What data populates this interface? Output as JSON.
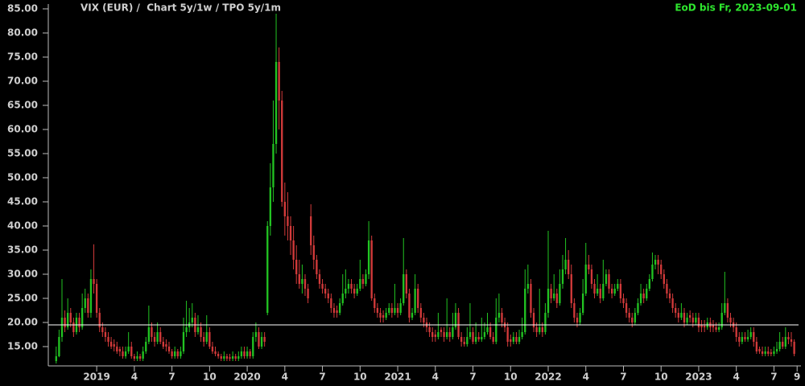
{
  "chart_data": {
    "type": "candlestick",
    "title": "VIX (EUR) /  Chart 5y/1w / TPO 5y/1m",
    "subtitle": "EoD bis Fr, 2023-09-01",
    "up_color": "#22c322",
    "down_color": "#d23a3a",
    "reference_color": "#ffffff",
    "background": "#000000",
    "reference_line": 19.5,
    "ylim": [
      11,
      85.5
    ],
    "yticks": [
      {
        "value": 15,
        "label": "15.00"
      },
      {
        "value": 20,
        "label": "20.00"
      },
      {
        "value": 25,
        "label": "25.00"
      },
      {
        "value": 30,
        "label": "30.00"
      },
      {
        "value": 35,
        "label": "35.00"
      },
      {
        "value": 40,
        "label": "40.00"
      },
      {
        "value": 45,
        "label": "45.00"
      },
      {
        "value": 50,
        "label": "50.00"
      },
      {
        "value": 55,
        "label": "55.00"
      },
      {
        "value": 60,
        "label": "60.00"
      },
      {
        "value": 65,
        "label": "65.00"
      },
      {
        "value": 70,
        "label": "70.00"
      },
      {
        "value": 75,
        "label": "75.00"
      },
      {
        "value": 80,
        "label": "80.00"
      },
      {
        "value": 85,
        "label": "85.00"
      }
    ],
    "xlim": [
      -0.5,
      256.5
    ],
    "xticks": [
      {
        "value": 14,
        "label": "2019"
      },
      {
        "value": 27,
        "label": "4"
      },
      {
        "value": 40,
        "label": "7"
      },
      {
        "value": 53,
        "label": "10"
      },
      {
        "value": 66,
        "label": "2020"
      },
      {
        "value": 79,
        "label": "4"
      },
      {
        "value": 92,
        "label": "7"
      },
      {
        "value": 105,
        "label": "10"
      },
      {
        "value": 118,
        "label": "2021"
      },
      {
        "value": 131,
        "label": "4"
      },
      {
        "value": 144,
        "label": "7"
      },
      {
        "value": 157,
        "label": "10"
      },
      {
        "value": 170,
        "label": "2022"
      },
      {
        "value": 183,
        "label": "4"
      },
      {
        "value": 196,
        "label": "7"
      },
      {
        "value": 209,
        "label": "10"
      },
      {
        "value": 222,
        "label": "2023"
      },
      {
        "value": 235,
        "label": "4"
      },
      {
        "value": 248,
        "label": "7"
      },
      {
        "value": 256,
        "label": "9"
      }
    ],
    "ohlc": [
      [
        12,
        15,
        11.5,
        13
      ],
      [
        13,
        18.5,
        12.8,
        17
      ],
      [
        17,
        29,
        16,
        21
      ],
      [
        21,
        22.5,
        18,
        19
      ],
      [
        19,
        25,
        18.5,
        22
      ],
      [
        22,
        23,
        19,
        20
      ],
      [
        20,
        21,
        17,
        18
      ],
      [
        18,
        22,
        17.5,
        21
      ],
      [
        21,
        22,
        18,
        19
      ],
      [
        19,
        26,
        18.5,
        23
      ],
      [
        23,
        27,
        22,
        25
      ],
      [
        25,
        26,
        21,
        22
      ],
      [
        22,
        31,
        21,
        29
      ],
      [
        29,
        36.2,
        26,
        28
      ],
      [
        28,
        29,
        21,
        22
      ],
      [
        22,
        23,
        18,
        19
      ],
      [
        19,
        20,
        17,
        18
      ],
      [
        18,
        19,
        16,
        17
      ],
      [
        17,
        18,
        15,
        16
      ],
      [
        16,
        17,
        14.5,
        15
      ],
      [
        15.5,
        16.5,
        14,
        15
      ],
      [
        15,
        16,
        13.5,
        14
      ],
      [
        14.5,
        15,
        13,
        14
      ],
      [
        14,
        15,
        12.5,
        13
      ],
      [
        13,
        15,
        12.5,
        14
      ],
      [
        14,
        18,
        13.5,
        15
      ],
      [
        15,
        16,
        12.5,
        13
      ],
      [
        13,
        13.5,
        12,
        12.5
      ],
      [
        12.5,
        14,
        12,
        13
      ],
      [
        13,
        13.5,
        12,
        12.5
      ],
      [
        12.5,
        15,
        12,
        14
      ],
      [
        14,
        17,
        13.5,
        16
      ],
      [
        16,
        23.5,
        15.5,
        19
      ],
      [
        19,
        20,
        16,
        17
      ],
      [
        17,
        18,
        15,
        16
      ],
      [
        16,
        20,
        15.5,
        18
      ],
      [
        18,
        19,
        15.5,
        16
      ],
      [
        16,
        17,
        14.5,
        15
      ],
      [
        15.5,
        16.5,
        14,
        15
      ],
      [
        15,
        16,
        13.5,
        14
      ],
      [
        14,
        14.5,
        12.5,
        13
      ],
      [
        13,
        15,
        12.5,
        14
      ],
      [
        14,
        14.5,
        12.5,
        13
      ],
      [
        13,
        15,
        12.5,
        14
      ],
      [
        14,
        21,
        13.5,
        18
      ],
      [
        18,
        24.5,
        17,
        19
      ],
      [
        19,
        23,
        18,
        20
      ],
      [
        20,
        24,
        19,
        21
      ],
      [
        21,
        22,
        17,
        18
      ],
      [
        18,
        21.5,
        17.5,
        19
      ],
      [
        19,
        20,
        16,
        17
      ],
      [
        17,
        18,
        15,
        16
      ],
      [
        16,
        21.5,
        15.5,
        18
      ],
      [
        18,
        19,
        14.5,
        15
      ],
      [
        15,
        16,
        13.5,
        14
      ],
      [
        14,
        15,
        13,
        13.5
      ],
      [
        13.5,
        14,
        12.5,
        13
      ],
      [
        13,
        13.5,
        12,
        12.5
      ],
      [
        12.5,
        14,
        12,
        13
      ],
      [
        13,
        13.5,
        12,
        12.5
      ],
      [
        12.8,
        13.5,
        12,
        12.5
      ],
      [
        12.5,
        14,
        12,
        13
      ],
      [
        13,
        13.5,
        12,
        12.5
      ],
      [
        12.5,
        14,
        12,
        13
      ],
      [
        13,
        15,
        12.5,
        14
      ],
      [
        14,
        15,
        12.5,
        13
      ],
      [
        13,
        15,
        12.5,
        14
      ],
      [
        14,
        14.5,
        12.5,
        13
      ],
      [
        13,
        18,
        12.5,
        17
      ],
      [
        17,
        20,
        16,
        18
      ],
      [
        18,
        19,
        14.5,
        15
      ],
      [
        15,
        18,
        14.5,
        17
      ],
      [
        17,
        18,
        15,
        16
      ],
      [
        22,
        41,
        21.5,
        40
      ],
      [
        40,
        53,
        38,
        48
      ],
      [
        48,
        66,
        45,
        57
      ],
      [
        57,
        84,
        55,
        74
      ],
      [
        74,
        77,
        60,
        66
      ],
      [
        66,
        68,
        44,
        45
      ],
      [
        45,
        49,
        38,
        42
      ],
      [
        42,
        47,
        37,
        40
      ],
      [
        40,
        42,
        34,
        37
      ],
      [
        37,
        40,
        31,
        33
      ],
      [
        33,
        36,
        28,
        30
      ],
      [
        30,
        33,
        27,
        28
      ],
      [
        28,
        32,
        26,
        29
      ],
      [
        29,
        30,
        25.5,
        27
      ],
      [
        27,
        28,
        24,
        25
      ],
      [
        42,
        44.5,
        34,
        36
      ],
      [
        36,
        38,
        31,
        33
      ],
      [
        33,
        34,
        29,
        30
      ],
      [
        30,
        31,
        27,
        28
      ],
      [
        28,
        29,
        26,
        27
      ],
      [
        27,
        28,
        25,
        26
      ],
      [
        26,
        27,
        24,
        25
      ],
      [
        25,
        26,
        22,
        23
      ],
      [
        23,
        24,
        21,
        22
      ],
      [
        22.5,
        23.5,
        21,
        22
      ],
      [
        22,
        25,
        21.5,
        24
      ],
      [
        24,
        30,
        23.5,
        26
      ],
      [
        26,
        31,
        25,
        27
      ],
      [
        27,
        29,
        26,
        28
      ],
      [
        28,
        29,
        26,
        27
      ],
      [
        27,
        28,
        25,
        26
      ],
      [
        26,
        28,
        25.5,
        27
      ],
      [
        27,
        33,
        26.5,
        29
      ],
      [
        29,
        30,
        27,
        28
      ],
      [
        28,
        31,
        27.5,
        30
      ],
      [
        30,
        41,
        29,
        37
      ],
      [
        37,
        38,
        24.5,
        25
      ],
      [
        25,
        26,
        22,
        23
      ],
      [
        23,
        24,
        21,
        22
      ],
      [
        22,
        23,
        20,
        21
      ],
      [
        21.5,
        22.5,
        20,
        21
      ],
      [
        21,
        23,
        20.5,
        22
      ],
      [
        22,
        24,
        21.5,
        23
      ],
      [
        23,
        24,
        21,
        22
      ],
      [
        22,
        28,
        21.5,
        23
      ],
      [
        23,
        24,
        21,
        22
      ],
      [
        22,
        25,
        21.5,
        24
      ],
      [
        24,
        37.5,
        23.5,
        30
      ],
      [
        30,
        31,
        25,
        26
      ],
      [
        26,
        27,
        20,
        21
      ],
      [
        21,
        23,
        20.5,
        22
      ],
      [
        22,
        30,
        21.5,
        27
      ],
      [
        27,
        28,
        22,
        23
      ],
      [
        23,
        24,
        20,
        21
      ],
      [
        21,
        22,
        19,
        20
      ],
      [
        20,
        21,
        18,
        19
      ],
      [
        19,
        20,
        17,
        18
      ],
      [
        18,
        19,
        16,
        17
      ],
      [
        17.5,
        18.5,
        16,
        17
      ],
      [
        17,
        22,
        16.5,
        18
      ],
      [
        18.5,
        19,
        17,
        18
      ],
      [
        18,
        19,
        16,
        17
      ],
      [
        17,
        25,
        16.5,
        18
      ],
      [
        18,
        19,
        16,
        17
      ],
      [
        17,
        22,
        16.5,
        19
      ],
      [
        19,
        24,
        18.5,
        22
      ],
      [
        22,
        23,
        16.5,
        17
      ],
      [
        17,
        18,
        15,
        16
      ],
      [
        16,
        17,
        15,
        15.5
      ],
      [
        15.5,
        19,
        15,
        17
      ],
      [
        17,
        24,
        16.5,
        18
      ],
      [
        18,
        19,
        15.5,
        16
      ],
      [
        16,
        20,
        15.5,
        17
      ],
      [
        17,
        18,
        16,
        16.5
      ],
      [
        16.5,
        21,
        16,
        17
      ],
      [
        17,
        20,
        16.5,
        18
      ],
      [
        18,
        22,
        17.5,
        19
      ],
      [
        19,
        20,
        16.5,
        17
      ],
      [
        17,
        18,
        15.5,
        16
      ],
      [
        16,
        25,
        15.5,
        21
      ],
      [
        21,
        26,
        20,
        22
      ],
      [
        22,
        23,
        19,
        20
      ],
      [
        20,
        21,
        18,
        19
      ],
      [
        19,
        20,
        15,
        16
      ],
      [
        16.5,
        17.5,
        15,
        16
      ],
      [
        16,
        18,
        15.5,
        17
      ],
      [
        17,
        18,
        15.5,
        16
      ],
      [
        16,
        18.5,
        15.5,
        17
      ],
      [
        17,
        21,
        16.5,
        18
      ],
      [
        18,
        31,
        17.5,
        27
      ],
      [
        27,
        32,
        26,
        28
      ],
      [
        28,
        29,
        21,
        22
      ],
      [
        22,
        23,
        18,
        19
      ],
      [
        19,
        20,
        17,
        18
      ],
      [
        18,
        27,
        17.5,
        19
      ],
      [
        19,
        20,
        17,
        18
      ],
      [
        18,
        24,
        17.5,
        22
      ],
      [
        22,
        39,
        21,
        27
      ],
      [
        27,
        28,
        24,
        25
      ],
      [
        25,
        30,
        24.5,
        26
      ],
      [
        26,
        27,
        23,
        24
      ],
      [
        24,
        31,
        23.5,
        28
      ],
      [
        28,
        34,
        27,
        31
      ],
      [
        31,
        37.5,
        30,
        33
      ],
      [
        33,
        35,
        29,
        30
      ],
      [
        30,
        32,
        23,
        24
      ],
      [
        24,
        25,
        20,
        21
      ],
      [
        21,
        22,
        19,
        20
      ],
      [
        20,
        23,
        19.5,
        22
      ],
      [
        22,
        29,
        21.5,
        26
      ],
      [
        26,
        36.5,
        25.5,
        32
      ],
      [
        32,
        34,
        30,
        31
      ],
      [
        31,
        32,
        27,
        28
      ],
      [
        28,
        29,
        25,
        26
      ],
      [
        26,
        30,
        25.5,
        27
      ],
      [
        27,
        28,
        24,
        25
      ],
      [
        25,
        33,
        24.5,
        28
      ],
      [
        28,
        31,
        27.5,
        30
      ],
      [
        30,
        31,
        26,
        27
      ],
      [
        27,
        28,
        25,
        26
      ],
      [
        26,
        28,
        25.5,
        27
      ],
      [
        27,
        29,
        26.5,
        28
      ],
      [
        28,
        29,
        24,
        25
      ],
      [
        25,
        26,
        23,
        24
      ],
      [
        24,
        25,
        21,
        22
      ],
      [
        22,
        23,
        20,
        21
      ],
      [
        21,
        22,
        19,
        20
      ],
      [
        20,
        23,
        19.5,
        22
      ],
      [
        22,
        25,
        21.5,
        24
      ],
      [
        24,
        28,
        23.5,
        26
      ],
      [
        26,
        27,
        24,
        25
      ],
      [
        25,
        28,
        24.5,
        27
      ],
      [
        27,
        30,
        26.5,
        29
      ],
      [
        29,
        34.5,
        28.5,
        32
      ],
      [
        32,
        34,
        31,
        33
      ],
      [
        33,
        34,
        30,
        32
      ],
      [
        32,
        33,
        29,
        30
      ],
      [
        30,
        31,
        27,
        28
      ],
      [
        28,
        29,
        25,
        26
      ],
      [
        26,
        27,
        24,
        25
      ],
      [
        25,
        26,
        22,
        23
      ],
      [
        23,
        24,
        21,
        22
      ],
      [
        22,
        23,
        20,
        21
      ],
      [
        21,
        24,
        20.5,
        22
      ],
      [
        22,
        23,
        19,
        20
      ],
      [
        20,
        22,
        19.5,
        21
      ],
      [
        21.5,
        22.5,
        20,
        21
      ],
      [
        21,
        22,
        19,
        20
      ],
      [
        20,
        22,
        19.5,
        21
      ],
      [
        21,
        22,
        18,
        19
      ],
      [
        19.5,
        20.5,
        18,
        19
      ],
      [
        19.3,
        20.5,
        18,
        19
      ],
      [
        19,
        21,
        18.5,
        20
      ],
      [
        20,
        21,
        18,
        19
      ],
      [
        19.5,
        20.5,
        18,
        19
      ],
      [
        19,
        20,
        18,
        18.5
      ],
      [
        18.5,
        20,
        18,
        19
      ],
      [
        19,
        24,
        18.5,
        22
      ],
      [
        22,
        30.5,
        21.5,
        24
      ],
      [
        24,
        25,
        20,
        21
      ],
      [
        21,
        22,
        19,
        20
      ],
      [
        20,
        21,
        18,
        19
      ],
      [
        19,
        20,
        16,
        17
      ],
      [
        17,
        18,
        15,
        16
      ],
      [
        16,
        18,
        15.5,
        17
      ],
      [
        17,
        18,
        16,
        16.5
      ],
      [
        16.5,
        18.5,
        16,
        17
      ],
      [
        17,
        19,
        16.5,
        18
      ],
      [
        18,
        19,
        15,
        16
      ],
      [
        16,
        17,
        13.5,
        14
      ],
      [
        14.5,
        15,
        13.5,
        14
      ],
      [
        14,
        15,
        13,
        13.5
      ],
      [
        13.5,
        15,
        13,
        14
      ],
      [
        14,
        15,
        13,
        13.5
      ],
      [
        13.8,
        14.5,
        13,
        13.5
      ],
      [
        13.5,
        15,
        13,
        14
      ],
      [
        14,
        16,
        13.5,
        14.5
      ],
      [
        14.5,
        18,
        14,
        16
      ],
      [
        16,
        17,
        14.5,
        15
      ],
      [
        15,
        19,
        14.5,
        17
      ],
      [
        17,
        18,
        15.5,
        16.5
      ],
      [
        16.5,
        18,
        15,
        16
      ],
      [
        16,
        16.5,
        13,
        13.5
      ]
    ]
  }
}
